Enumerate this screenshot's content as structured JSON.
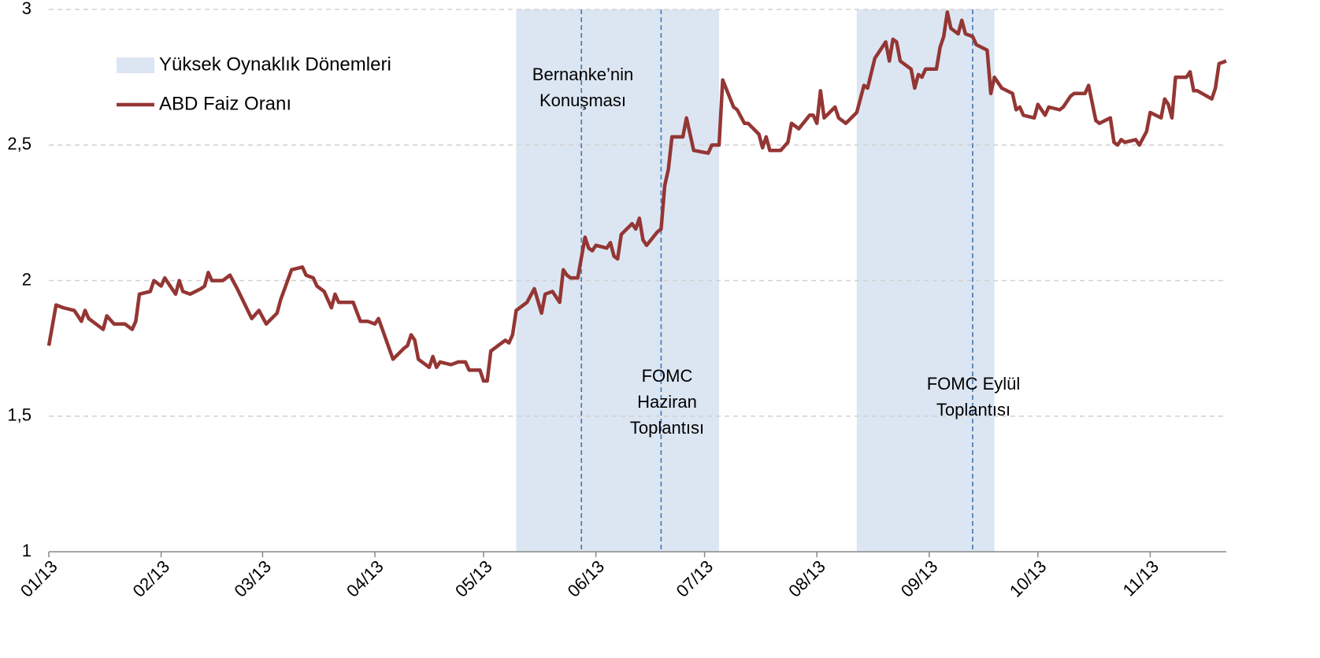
{
  "chart_data": {
    "type": "line",
    "x": [
      0,
      2,
      4,
      7,
      8,
      9,
      10,
      11,
      15,
      16,
      18,
      21,
      23,
      24,
      25,
      28,
      29,
      31,
      32,
      35,
      36,
      37,
      39,
      42,
      43,
      44,
      45,
      48,
      50,
      52,
      56,
      58,
      60,
      63,
      64,
      67,
      70,
      71,
      73,
      74,
      76,
      78,
      79,
      80,
      84,
      86,
      88,
      90,
      91,
      95,
      98,
      99,
      100,
      101,
      102,
      105,
      106,
      107,
      108,
      111,
      113,
      115,
      116,
      119,
      120,
      121,
      122,
      125,
      126,
      127,
      128,
      129,
      132,
      134,
      136,
      137,
      139,
      141,
      142,
      143,
      144,
      146,
      148,
      149,
      150,
      151,
      154,
      155,
      156,
      157,
      158,
      161,
      162,
      163,
      164,
      165,
      168,
      169,
      170,
      171,
      172,
      175,
      176,
      178,
      182,
      183,
      185,
      186,
      189,
      190,
      192,
      193,
      196,
      197,
      198,
      199,
      202,
      204,
      205,
      207,
      210,
      211,
      212,
      213,
      214,
      217,
      218,
      220,
      223,
      225,
      226,
      228,
      231,
      232,
      233,
      234,
      235,
      238,
      239,
      240,
      241,
      242,
      245,
      246,
      247,
      248,
      249,
      251,
      252,
      253,
      255,
      256,
      259,
      260,
      261,
      263,
      266,
      267,
      268,
      269,
      272,
      273,
      275,
      276,
      279,
      280,
      282,
      283,
      286,
      287,
      289,
      290,
      293,
      294,
      295,
      296,
      297,
      300,
      301,
      303,
      304,
      307,
      308,
      309,
      310,
      311,
      314,
      315,
      316,
      317,
      321,
      322,
      323,
      325
    ],
    "series": [
      {
        "name": "ABD Faiz Oranı",
        "color": "#943634",
        "values": [
          1.76,
          1.91,
          1.9,
          1.89,
          1.87,
          1.85,
          1.89,
          1.86,
          1.82,
          1.87,
          1.84,
          1.84,
          1.82,
          1.85,
          1.95,
          1.96,
          2.0,
          1.98,
          2.01,
          1.95,
          2.0,
          1.96,
          1.95,
          1.97,
          1.98,
          2.03,
          2.0,
          2.0,
          2.02,
          1.97,
          1.86,
          1.89,
          1.84,
          1.88,
          1.93,
          2.04,
          2.05,
          2.02,
          2.01,
          1.98,
          1.96,
          1.9,
          1.95,
          1.92,
          1.92,
          1.85,
          1.85,
          1.84,
          1.86,
          1.71,
          1.75,
          1.76,
          1.8,
          1.78,
          1.71,
          1.68,
          1.72,
          1.68,
          1.7,
          1.69,
          1.7,
          1.7,
          1.67,
          1.67,
          1.63,
          1.63,
          1.74,
          1.77,
          1.78,
          1.77,
          1.8,
          1.89,
          1.92,
          1.97,
          1.88,
          1.95,
          1.96,
          1.92,
          2.04,
          2.02,
          2.01,
          2.01,
          2.16,
          2.12,
          2.11,
          2.13,
          2.12,
          2.14,
          2.09,
          2.08,
          2.17,
          2.21,
          2.19,
          2.23,
          2.15,
          2.13,
          2.18,
          2.19,
          2.35,
          2.41,
          2.53,
          2.53,
          2.6,
          2.48,
          2.47,
          2.5,
          2.5,
          2.74,
          2.64,
          2.63,
          2.58,
          2.58,
          2.54,
          2.49,
          2.53,
          2.48,
          2.48,
          2.51,
          2.58,
          2.56,
          2.61,
          2.61,
          2.58,
          2.7,
          2.6,
          2.64,
          2.6,
          2.58,
          2.62,
          2.72,
          2.71,
          2.82,
          2.88,
          2.81,
          2.89,
          2.88,
          2.81,
          2.78,
          2.71,
          2.76,
          2.75,
          2.78,
          2.78,
          2.86,
          2.9,
          2.99,
          2.93,
          2.91,
          2.96,
          2.91,
          2.9,
          2.87,
          2.85,
          2.69,
          2.75,
          2.71,
          2.69,
          2.63,
          2.64,
          2.61,
          2.6,
          2.65,
          2.61,
          2.64,
          2.63,
          2.64,
          2.68,
          2.69,
          2.69,
          2.72,
          2.59,
          2.58,
          2.6,
          2.51,
          2.5,
          2.52,
          2.51,
          2.52,
          2.5,
          2.55,
          2.62,
          2.6,
          2.67,
          2.65,
          2.6,
          2.75,
          2.75,
          2.77,
          2.7,
          2.7,
          2.67,
          2.71,
          2.8,
          2.81
        ]
      }
    ],
    "shaded_periods": {
      "name": "Yüksek Oynaklık Dönemleri",
      "color": "#dce6f2",
      "ranges": [
        [
          129,
          185
        ],
        [
          223,
          261
        ]
      ]
    },
    "events": [
      {
        "x": 147,
        "label": [
          "Bernanke’nin",
          "Konuşması"
        ]
      },
      {
        "x": 169,
        "label": [
          "FOMC",
          "Haziran",
          "Toplantısı"
        ]
      },
      {
        "x": 255,
        "label": [
          "FOMC Eylül",
          "Toplantısı"
        ]
      }
    ],
    "event_line_color": "#4f81bd",
    "xlim": [
      0,
      325
    ],
    "xticks": [
      {
        "value": 0,
        "label": "01/13"
      },
      {
        "value": 31,
        "label": "02/13"
      },
      {
        "value": 59,
        "label": "03/13"
      },
      {
        "value": 90,
        "label": "04/13"
      },
      {
        "value": 120,
        "label": "05/13"
      },
      {
        "value": 151,
        "label": "06/13"
      },
      {
        "value": 181,
        "label": "07/13"
      },
      {
        "value": 212,
        "label": "08/13"
      },
      {
        "value": 243,
        "label": "09/13"
      },
      {
        "value": 273,
        "label": "10/13"
      },
      {
        "value": 304,
        "label": "11/13"
      }
    ],
    "ylim": [
      1,
      3
    ],
    "yticks": [
      1,
      {
        "value": 1.5,
        "label": "1,5"
      },
      2,
      {
        "value": 2.5,
        "label": "2,5"
      },
      3
    ],
    "grid": true,
    "legend": "upper left"
  }
}
